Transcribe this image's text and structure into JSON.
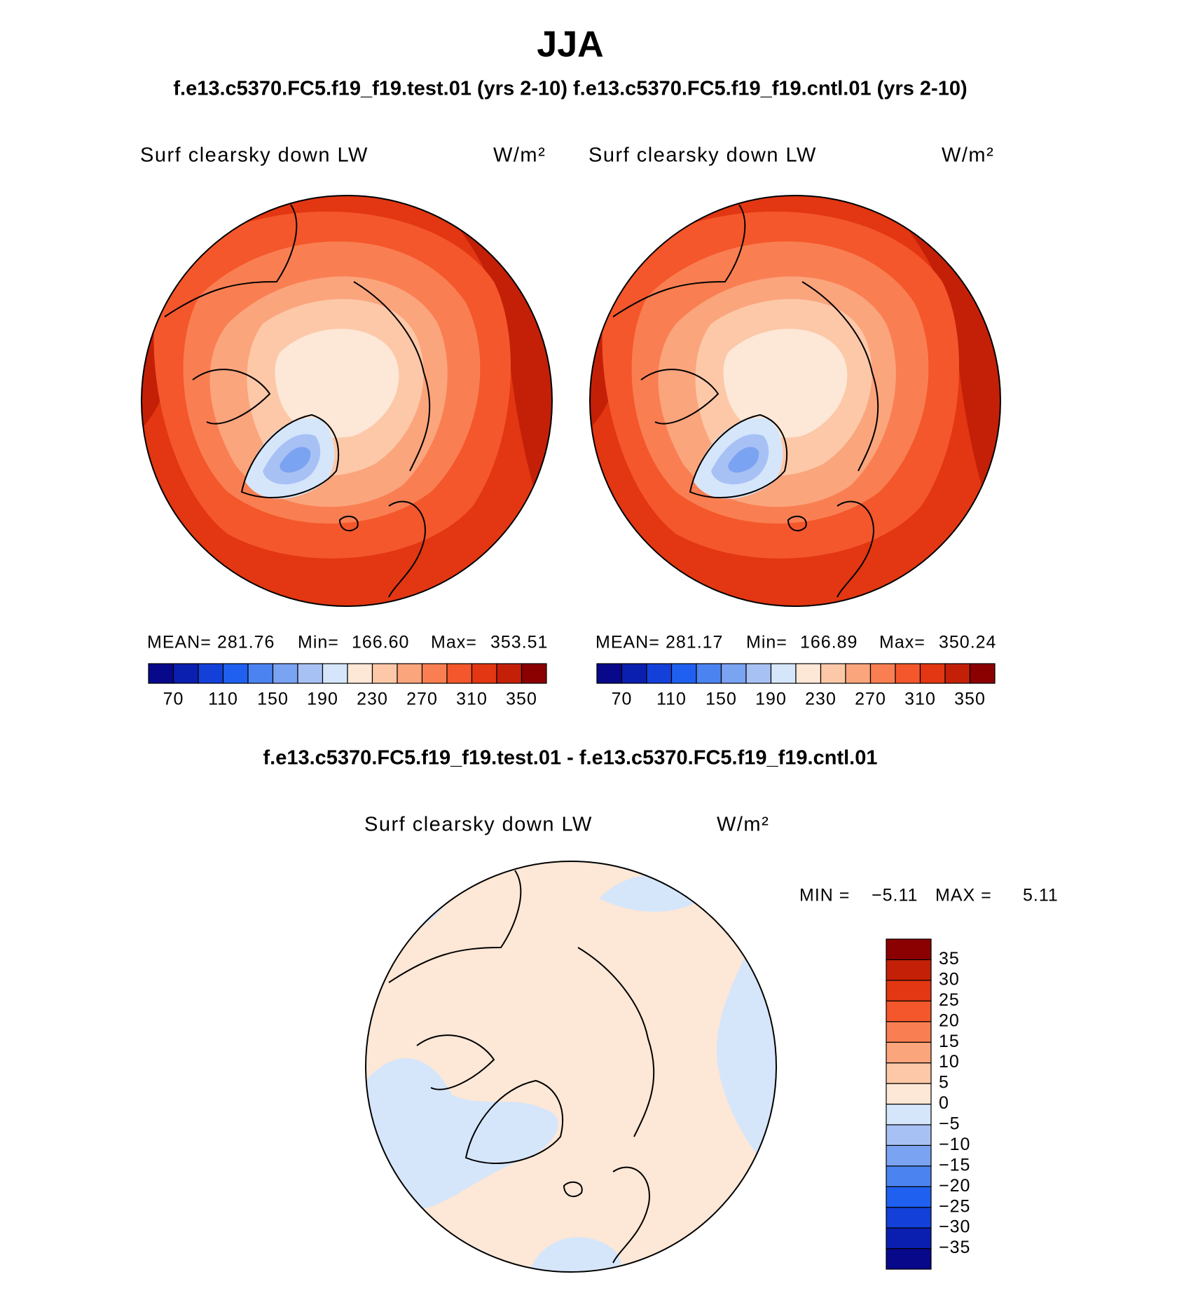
{
  "title": "JJA",
  "subtitle": "f.e13.c5370.FC5.f19_f19.test.01 (yrs 2-10) f.e13.c5370.FC5.f19_f19.cntl.01 (yrs 2-10)",
  "panels": [
    {
      "title": "Surf clearsky down LW",
      "units": "W/m²",
      "stats": [
        {
          "label": "MEAN=",
          "value": "281.76"
        },
        {
          "label": "Min=",
          "value": "166.60"
        },
        {
          "label": "Max=",
          "value": "353.51"
        }
      ]
    },
    {
      "title": "Surf clearsky down LW",
      "units": "W/m²",
      "stats": [
        {
          "label": "MEAN=",
          "value": "281.17"
        },
        {
          "label": "Min=",
          "value": "166.89"
        },
        {
          "label": "Max=",
          "value": "350.24"
        }
      ]
    }
  ],
  "diff": {
    "heading": "f.e13.c5370.FC5.f19_f19.test.01 - f.e13.c5370.FC5.f19_f19.cntl.01",
    "title": "Surf clearsky down LW",
    "units": "W/m²",
    "stats": [
      {
        "label": "MIN =",
        "value": "−5.11"
      },
      {
        "label": "MAX =",
        "value": "5.11"
      }
    ]
  },
  "colorbar": {
    "lim": [
      50,
      370
    ],
    "colors": [
      "#08088a",
      "#0a1fb0",
      "#1340d8",
      "#2060f0",
      "#4b84f0",
      "#7aa3f2",
      "#a8c1f5",
      "#d5e6fb",
      "#fde7d6",
      "#fcc8a8",
      "#fba57d",
      "#f97f52",
      "#f4572b",
      "#e23712",
      "#c42008",
      "#8b0000"
    ],
    "ticks": [
      70,
      110,
      150,
      190,
      230,
      270,
      310,
      350
    ]
  },
  "diff_colorbar": {
    "lim": [
      -40,
      40
    ],
    "colors": [
      "#08088a",
      "#0a1fb0",
      "#1340d8",
      "#2060f0",
      "#4b84f0",
      "#7aa3f2",
      "#a8c1f5",
      "#d5e6fb",
      "#fde7d6",
      "#fcc8a8",
      "#fba57d",
      "#f97f52",
      "#f4572b",
      "#e23712",
      "#c42008",
      "#8b0000"
    ],
    "ticks": [
      35,
      30,
      25,
      20,
      15,
      10,
      5,
      0,
      {
        "value": -5,
        "label": "−5"
      },
      {
        "value": -10,
        "label": "−10"
      },
      {
        "value": -15,
        "label": "−15"
      },
      {
        "value": -20,
        "label": "−20"
      },
      {
        "value": -25,
        "label": "−25"
      },
      {
        "value": -30,
        "label": "−30"
      },
      {
        "value": -35,
        "label": "−35"
      }
    ]
  }
}
